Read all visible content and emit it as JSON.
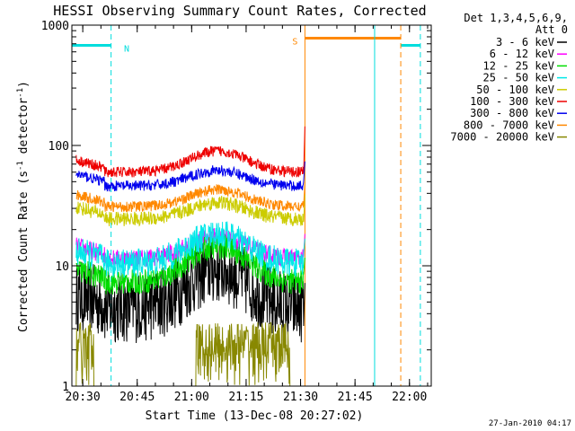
{
  "chart_data": {
    "type": "line",
    "title": "HESSI Observing Summary Count Rates, Corrected",
    "xlabel": "Start Time (13-Dec-08 20:27:02)",
    "ylabel_parts": [
      "Corrected Count Rate (s",
      "-1",
      " detector",
      "-1",
      ")"
    ],
    "yscale": "log",
    "ylim": [
      1,
      1000
    ],
    "xlim": [
      20.45,
      22.1
    ],
    "x_ticks": [
      {
        "t": 20.5,
        "label": "20:30"
      },
      {
        "t": 20.75,
        "label": "20:45"
      },
      {
        "t": 21.0,
        "label": "21:00"
      },
      {
        "t": 21.25,
        "label": "21:15"
      },
      {
        "t": 21.5,
        "label": "21:30"
      },
      {
        "t": 21.75,
        "label": "21:45"
      },
      {
        "t": 22.0,
        "label": "22:00"
      }
    ],
    "y_ticks": [
      {
        "v": 1,
        "label": "1"
      },
      {
        "v": 10,
        "label": "10"
      },
      {
        "v": 100,
        "label": "100"
      },
      {
        "v": 1000,
        "label": "1000"
      }
    ],
    "legend": {
      "header": [
        "Det 1,3,4,5,6,9,",
        "Att 0"
      ],
      "placement": "right"
    },
    "series": [
      {
        "name": "3 - 6 keV",
        "color": "#000000",
        "base": 4.5,
        "peak": 9.5,
        "noise": 0.1
      },
      {
        "name": "6 - 12 keV",
        "color": "#ff00ff",
        "base": 11.5,
        "peak": 17.5,
        "noise": 0.025
      },
      {
        "name": "12 - 25 keV",
        "color": "#00dd00",
        "base": 7.3,
        "peak": 14.5,
        "noise": 0.035
      },
      {
        "name": "25 - 50 keV",
        "color": "#00e8e8",
        "base": 10.5,
        "peak": 18.5,
        "noise": 0.04
      },
      {
        "name": "50 - 100 keV",
        "color": "#cccc00",
        "base": 24.5,
        "peak": 33.5,
        "noise": 0.02
      },
      {
        "name": "100 - 300 keV",
        "color": "#ee0000",
        "base": 60,
        "peak": 90,
        "noise": 0.015
      },
      {
        "name": "300 - 800 keV",
        "color": "#0000ee",
        "base": 46,
        "peak": 62,
        "noise": 0.015
      },
      {
        "name": "800 - 7000 keV",
        "color": "#ff8800",
        "base": 31,
        "peak": 43,
        "noise": 0.015
      },
      {
        "name": "7000 - 20000 keV",
        "color": "#888800",
        "base": 1.0,
        "peak": 1.0,
        "noise": 0.0
      }
    ],
    "flags": [
      {
        "label": "N",
        "color": "#00dddd",
        "x_start": 20.45,
        "x_end": 20.63,
        "y": 680
      },
      {
        "label": "S",
        "color": "#ff8800",
        "x_start": 21.52,
        "x_end": 21.96,
        "y": 780
      },
      {
        "label": "",
        "color": "#00dddd",
        "x_start": 21.96,
        "x_end": 22.05,
        "y": 680
      }
    ],
    "event_lines": [
      {
        "t": 20.63,
        "color": "#00dddd",
        "style": "dashed"
      },
      {
        "t": 21.52,
        "color": "#ff8800",
        "style": "solid"
      },
      {
        "t": 21.84,
        "color": "#00dddd",
        "style": "solid"
      },
      {
        "t": 21.96,
        "color": "#ff8800",
        "style": "dashed"
      },
      {
        "t": 22.05,
        "color": "#00dddd",
        "style": "dashed"
      }
    ]
  },
  "footer": {
    "date": "27-Jan-2010 04:17"
  }
}
